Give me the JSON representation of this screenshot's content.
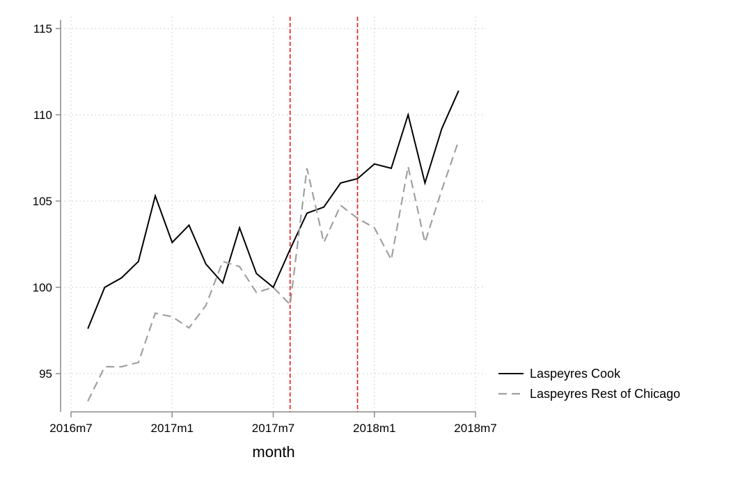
{
  "chart_data": {
    "type": "line",
    "xlabel": "month",
    "ylabel": "",
    "x_ticks": [
      "2016m7",
      "2017m1",
      "2017m7",
      "2018m1",
      "2018m7"
    ],
    "y_ticks": [
      "95",
      "100",
      "105",
      "110",
      "115"
    ],
    "xlim": [
      "2016m7",
      "2018m7"
    ],
    "ylim": [
      92.9,
      115.5
    ],
    "grid": true,
    "legend_position": "right",
    "x": [
      "2016m8",
      "2016m9",
      "2016m10",
      "2016m11",
      "2016m12",
      "2017m1",
      "2017m2",
      "2017m3",
      "2017m4",
      "2017m5",
      "2017m6",
      "2017m7",
      "2017m8",
      "2017m9",
      "2017m10",
      "2017m11",
      "2017m12",
      "2018m1",
      "2018m2",
      "2018m3",
      "2018m4",
      "2018m5",
      "2018m6"
    ],
    "series": [
      {
        "name": "Laspeyres Cook",
        "color": "#000000",
        "dash": "solid",
        "values": [
          97.6,
          100.0,
          100.55,
          101.5,
          105.3,
          102.6,
          103.6,
          101.35,
          100.25,
          103.45,
          100.8,
          100.0,
          102.2,
          104.3,
          104.65,
          106.05,
          106.3,
          107.15,
          106.9,
          110.0,
          106.05,
          109.2,
          111.4
        ]
      },
      {
        "name": "Laspeyres Rest of Chicago",
        "color": "#a0a0a0",
        "dash": "dashed",
        "values": [
          93.4,
          95.4,
          95.4,
          95.65,
          98.5,
          98.3,
          97.65,
          98.95,
          101.5,
          101.2,
          99.7,
          100.0,
          99.0,
          106.9,
          102.6,
          104.75,
          104.0,
          103.45,
          101.6,
          107.0,
          102.6,
          105.65,
          108.5
        ]
      }
    ],
    "vertical_lines": {
      "color": "#e41a1c",
      "style": "dashed",
      "x": [
        "2017m8",
        "2017m12"
      ]
    }
  }
}
